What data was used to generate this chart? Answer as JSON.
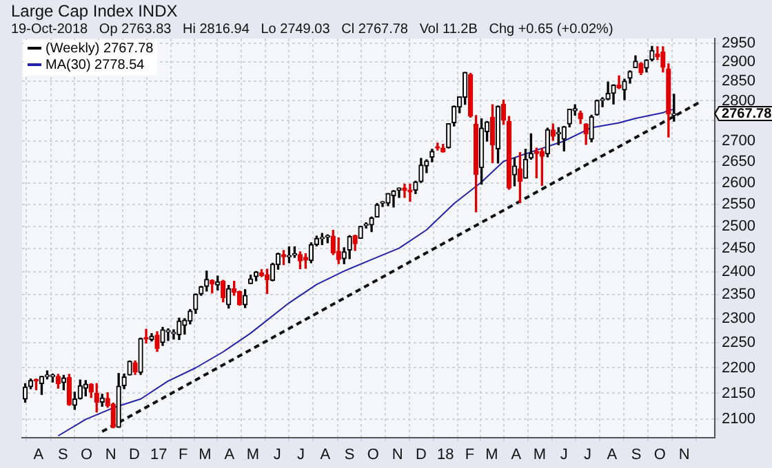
{
  "chart_data": {
    "type": "candlestick",
    "title": "Large Cap Index INDX",
    "subtitle": "19-Oct-2018   Op 2763.83   Hi 2816.94   Lo 2749.03   Cl 2767.78   Vol 11.2B   Chg +0.65 (+0.02%)",
    "xlim": [
      "2016-07-11",
      "2018-12-10"
    ],
    "xticks": [
      {
        "value": "2016-08-01",
        "label": "A"
      },
      {
        "value": "2016-09-01",
        "label": "S"
      },
      {
        "value": "2016-10-01",
        "label": "O"
      },
      {
        "value": "2016-11-01",
        "label": "N"
      },
      {
        "value": "2016-12-01",
        "label": "D"
      },
      {
        "value": "2017-01-01",
        "label": "17"
      },
      {
        "value": "2017-02-01",
        "label": "F"
      },
      {
        "value": "2017-03-01",
        "label": "M"
      },
      {
        "value": "2017-04-01",
        "label": "A"
      },
      {
        "value": "2017-05-01",
        "label": "M"
      },
      {
        "value": "2017-06-01",
        "label": "J"
      },
      {
        "value": "2017-07-01",
        "label": "J"
      },
      {
        "value": "2017-08-01",
        "label": "A"
      },
      {
        "value": "2017-09-01",
        "label": "S"
      },
      {
        "value": "2017-10-01",
        "label": "O"
      },
      {
        "value": "2017-11-01",
        "label": "N"
      },
      {
        "value": "2017-12-01",
        "label": "D"
      },
      {
        "value": "2018-01-01",
        "label": "18"
      },
      {
        "value": "2018-02-01",
        "label": "F"
      },
      {
        "value": "2018-03-01",
        "label": "M"
      },
      {
        "value": "2018-04-01",
        "label": "A"
      },
      {
        "value": "2018-05-01",
        "label": "M"
      },
      {
        "value": "2018-06-01",
        "label": "J"
      },
      {
        "value": "2018-07-01",
        "label": "J"
      },
      {
        "value": "2018-08-01",
        "label": "A"
      },
      {
        "value": "2018-09-01",
        "label": "S"
      },
      {
        "value": "2018-10-01",
        "label": "O"
      },
      {
        "value": "2018-11-01",
        "label": "N"
      }
    ],
    "ylim": [
      2066,
      2962
    ],
    "yticks": [
      2100,
      2150,
      2200,
      2250,
      2300,
      2350,
      2400,
      2450,
      2500,
      2550,
      2600,
      2650,
      2700,
      {
        "value": 2750,
        "label": null
      },
      2800,
      2850,
      2900,
      2950
    ],
    "log": true,
    "grid": true,
    "legend": "top left",
    "annotations": [
      "2767.78"
    ],
    "series": [
      {
        "name": "(Weekly) 2767.78",
        "color": "#000000",
        "x": [
          "2016-07-15",
          "2016-07-22",
          "2016-07-29",
          "2016-08-05",
          "2016-08-12",
          "2016-08-19",
          "2016-08-26",
          "2016-09-02",
          "2016-09-09",
          "2016-09-16",
          "2016-09-23",
          "2016-09-30",
          "2016-10-07",
          "2016-10-14",
          "2016-10-21",
          "2016-10-28",
          "2016-11-04",
          "2016-11-11",
          "2016-11-18",
          "2016-11-25",
          "2016-12-02",
          "2016-12-09",
          "2016-12-16",
          "2016-12-23",
          "2016-12-30",
          "2017-01-06",
          "2017-01-13",
          "2017-01-20",
          "2017-01-27",
          "2017-02-03",
          "2017-02-10",
          "2017-02-17",
          "2017-02-24",
          "2017-03-03",
          "2017-03-10",
          "2017-03-17",
          "2017-03-24",
          "2017-03-31",
          "2017-04-07",
          "2017-04-14",
          "2017-04-21",
          "2017-04-28",
          "2017-05-05",
          "2017-05-12",
          "2017-05-19",
          "2017-05-26",
          "2017-06-02",
          "2017-06-09",
          "2017-06-16",
          "2017-06-23",
          "2017-06-30",
          "2017-07-07",
          "2017-07-14",
          "2017-07-21",
          "2017-07-28",
          "2017-08-04",
          "2017-08-11",
          "2017-08-18",
          "2017-08-25",
          "2017-09-01",
          "2017-09-08",
          "2017-09-15",
          "2017-09-22",
          "2017-09-29",
          "2017-10-06",
          "2017-10-13",
          "2017-10-20",
          "2017-10-27",
          "2017-11-03",
          "2017-11-10",
          "2017-11-17",
          "2017-11-24",
          "2017-12-01",
          "2017-12-08",
          "2017-12-15",
          "2017-12-22",
          "2017-12-29",
          "2018-01-05",
          "2018-01-12",
          "2018-01-19",
          "2018-01-26",
          "2018-02-02",
          "2018-02-09",
          "2018-02-16",
          "2018-02-23",
          "2018-03-02",
          "2018-03-09",
          "2018-03-16",
          "2018-03-23",
          "2018-03-30",
          "2018-04-06",
          "2018-04-13",
          "2018-04-20",
          "2018-04-27",
          "2018-05-04",
          "2018-05-11",
          "2018-05-18",
          "2018-05-25",
          "2018-06-01",
          "2018-06-08",
          "2018-06-15",
          "2018-06-22",
          "2018-06-29",
          "2018-07-06",
          "2018-07-13",
          "2018-07-20",
          "2018-07-27",
          "2018-08-03",
          "2018-08-10",
          "2018-08-17",
          "2018-08-24",
          "2018-08-31",
          "2018-09-07",
          "2018-09-14",
          "2018-09-21",
          "2018-09-28",
          "2018-10-05",
          "2018-10-12",
          "2018-10-19"
        ],
        "ohlc": [
          [
            2139,
            2169,
            2133,
            2162
          ],
          [
            2163,
            2178,
            2159,
            2175
          ],
          [
            2175,
            2178,
            2157,
            2174
          ],
          [
            2169,
            2183,
            2148,
            2183
          ],
          [
            2183,
            2194,
            2178,
            2184
          ],
          [
            2183,
            2188,
            2172,
            2184
          ],
          [
            2183,
            2187,
            2160,
            2169
          ],
          [
            2171,
            2185,
            2157,
            2180
          ],
          [
            2181,
            2187,
            2127,
            2128
          ],
          [
            2127,
            2152,
            2119,
            2139
          ],
          [
            2140,
            2176,
            2139,
            2165
          ],
          [
            2160,
            2175,
            2145,
            2168
          ],
          [
            2168,
            2169,
            2142,
            2153
          ],
          [
            2150,
            2169,
            2114,
            2133
          ],
          [
            2133,
            2148,
            2125,
            2141
          ],
          [
            2140,
            2151,
            2123,
            2126
          ],
          [
            2129,
            2131,
            2084,
            2085
          ],
          [
            2085,
            2189,
            2085,
            2164
          ],
          [
            2165,
            2188,
            2159,
            2182
          ],
          [
            2186,
            2214,
            2186,
            2213
          ],
          [
            2210,
            2214,
            2187,
            2192
          ],
          [
            2191,
            2260,
            2187,
            2259
          ],
          [
            2259,
            2278,
            2250,
            2258
          ],
          [
            2257,
            2269,
            2254,
            2264
          ],
          [
            2266,
            2273,
            2233,
            2239
          ],
          [
            2251,
            2282,
            2245,
            2277
          ],
          [
            2273,
            2279,
            2255,
            2275
          ],
          [
            2269,
            2277,
            2258,
            2271
          ],
          [
            2267,
            2301,
            2257,
            2295
          ],
          [
            2286,
            2300,
            2268,
            2297
          ],
          [
            2295,
            2319,
            2289,
            2316
          ],
          [
            2319,
            2352,
            2311,
            2351
          ],
          [
            2352,
            2368,
            2349,
            2367
          ],
          [
            2368,
            2401,
            2358,
            2383
          ],
          [
            2381,
            2382,
            2354,
            2373
          ],
          [
            2371,
            2390,
            2360,
            2378
          ],
          [
            2379,
            2381,
            2335,
            2344
          ],
          [
            2329,
            2370,
            2322,
            2363
          ],
          [
            2363,
            2379,
            2349,
            2355
          ],
          [
            2357,
            2358,
            2328,
            2329
          ],
          [
            2329,
            2361,
            2323,
            2349
          ],
          [
            2374,
            2392,
            2374,
            2384
          ],
          [
            2389,
            2400,
            2380,
            2399
          ],
          [
            2397,
            2404,
            2389,
            2391
          ],
          [
            2393,
            2405,
            2353,
            2382
          ],
          [
            2381,
            2418,
            2380,
            2416
          ],
          [
            2415,
            2440,
            2405,
            2439
          ],
          [
            2437,
            2446,
            2415,
            2432
          ],
          [
            2432,
            2454,
            2419,
            2433
          ],
          [
            2436,
            2454,
            2431,
            2438
          ],
          [
            2437,
            2443,
            2406,
            2423
          ],
          [
            2431,
            2439,
            2407,
            2425
          ],
          [
            2424,
            2463,
            2419,
            2459
          ],
          [
            2459,
            2478,
            2456,
            2473
          ],
          [
            2472,
            2484,
            2459,
            2472
          ],
          [
            2476,
            2481,
            2463,
            2477
          ],
          [
            2478,
            2491,
            2437,
            2441
          ],
          [
            2444,
            2474,
            2417,
            2426
          ],
          [
            2428,
            2452,
            2417,
            2443
          ],
          [
            2447,
            2479,
            2428,
            2477
          ],
          [
            2479,
            2480,
            2446,
            2461
          ],
          [
            2473,
            2500,
            2473,
            2500
          ],
          [
            2502,
            2508,
            2496,
            2502
          ],
          [
            2503,
            2521,
            2488,
            2519
          ],
          [
            2521,
            2552,
            2521,
            2549
          ],
          [
            2553,
            2557,
            2545,
            2553
          ],
          [
            2553,
            2575,
            2547,
            2575
          ],
          [
            2570,
            2582,
            2544,
            2581
          ],
          [
            2583,
            2588,
            2566,
            2588
          ],
          [
            2588,
            2597,
            2566,
            2582
          ],
          [
            2583,
            2597,
            2557,
            2579
          ],
          [
            2583,
            2604,
            2575,
            2602
          ],
          [
            2603,
            2658,
            2601,
            2642
          ],
          [
            2640,
            2655,
            2624,
            2652
          ],
          [
            2661,
            2680,
            2650,
            2675
          ],
          [
            2684,
            2695,
            2678,
            2683
          ],
          [
            2683,
            2692,
            2673,
            2674
          ],
          [
            2684,
            2743,
            2683,
            2743
          ],
          [
            2745,
            2787,
            2737,
            2786
          ],
          [
            2784,
            2810,
            2770,
            2810
          ],
          [
            2809,
            2873,
            2791,
            2873
          ],
          [
            2867,
            2870,
            2759,
            2762
          ],
          [
            2741,
            2763,
            2533,
            2620
          ],
          [
            2636,
            2755,
            2597,
            2732
          ],
          [
            2723,
            2748,
            2700,
            2747
          ],
          [
            2759,
            2790,
            2648,
            2691
          ],
          [
            2681,
            2787,
            2647,
            2786
          ],
          [
            2791,
            2802,
            2741,
            2752
          ],
          [
            2749,
            2761,
            2585,
            2588
          ],
          [
            2619,
            2659,
            2593,
            2640
          ],
          [
            2633,
            2672,
            2554,
            2604
          ],
          [
            2611,
            2680,
            2611,
            2656
          ],
          [
            2659,
            2718,
            2656,
            2670
          ],
          [
            2675,
            2683,
            2612,
            2670
          ],
          [
            2675,
            2682,
            2594,
            2663
          ],
          [
            2669,
            2732,
            2662,
            2728
          ],
          [
            2727,
            2742,
            2702,
            2712
          ],
          [
            2718,
            2733,
            2691,
            2721
          ],
          [
            2705,
            2736,
            2676,
            2735
          ],
          [
            2742,
            2779,
            2735,
            2779
          ],
          [
            2775,
            2790,
            2764,
            2780
          ],
          [
            2769,
            2774,
            2743,
            2755
          ],
          [
            2742,
            2743,
            2692,
            2718
          ],
          [
            2705,
            2764,
            2698,
            2760
          ],
          [
            2765,
            2802,
            2764,
            2801
          ],
          [
            2801,
            2808,
            2785,
            2802
          ],
          [
            2804,
            2848,
            2803,
            2819
          ],
          [
            2819,
            2841,
            2792,
            2840
          ],
          [
            2840,
            2864,
            2831,
            2833
          ],
          [
            2828,
            2855,
            2803,
            2850
          ],
          [
            2858,
            2877,
            2845,
            2875
          ],
          [
            2885,
            2916,
            2885,
            2902
          ],
          [
            2896,
            2898,
            2867,
            2872
          ],
          [
            2884,
            2906,
            2874,
            2905
          ],
          [
            2906,
            2941,
            2903,
            2930
          ],
          [
            2921,
            2940,
            2906,
            2914
          ],
          [
            2926,
            2940,
            2874,
            2886
          ],
          [
            2882,
            2895,
            2710,
            2767
          ],
          [
            2763.83,
            2816.94,
            2749.03,
            2767.78
          ]
        ],
        "colors": [
          "#000000",
          "#000000",
          "#e00000",
          "#000000",
          "#000000",
          "#000000",
          "#e00000",
          "#000000",
          "#e00000",
          "#000000",
          "#000000",
          "#000000",
          "#e00000",
          "#e00000",
          "#000000",
          "#e00000",
          "#e00000",
          "#000000",
          "#000000",
          "#000000",
          "#e00000",
          "#000000",
          "#e00000",
          "#000000",
          "#e00000",
          "#000000",
          "#000000",
          "#000000",
          "#000000",
          "#000000",
          "#000000",
          "#000000",
          "#000000",
          "#000000",
          "#e00000",
          "#000000",
          "#e00000",
          "#000000",
          "#e00000",
          "#e00000",
          "#000000",
          "#000000",
          "#000000",
          "#e00000",
          "#e00000",
          "#000000",
          "#000000",
          "#e00000",
          "#000000",
          "#000000",
          "#e00000",
          "#e00000",
          "#000000",
          "#000000",
          "#000000",
          "#000000",
          "#e00000",
          "#e00000",
          "#000000",
          "#000000",
          "#e00000",
          "#000000",
          "#000000",
          "#000000",
          "#000000",
          "#000000",
          "#000000",
          "#000000",
          "#000000",
          "#e00000",
          "#e00000",
          "#000000",
          "#000000",
          "#000000",
          "#000000",
          "#e00000",
          "#e00000",
          "#000000",
          "#000000",
          "#000000",
          "#000000",
          "#e00000",
          "#e00000",
          "#000000",
          "#000000",
          "#e00000",
          "#000000",
          "#e00000",
          "#e00000",
          "#000000",
          "#e00000",
          "#000000",
          "#000000",
          "#e00000",
          "#e00000",
          "#000000",
          "#e00000",
          "#000000",
          "#000000",
          "#000000",
          "#000000",
          "#e00000",
          "#e00000",
          "#000000",
          "#000000",
          "#000000",
          "#000000",
          "#000000",
          "#e00000",
          "#000000",
          "#000000",
          "#000000",
          "#e00000",
          "#000000",
          "#000000",
          "#e00000",
          "#e00000",
          "#e00000",
          "#000000"
        ]
      },
      {
        "type": "line",
        "name": "MA(30) 2778.54",
        "color": "#2222aa",
        "marker": "none",
        "line_style": "solid",
        "x": [
          "2016-08-26",
          "2016-09-30",
          "2016-11-04",
          "2016-12-09",
          "2017-01-13",
          "2017-02-17",
          "2017-03-24",
          "2017-04-28",
          "2017-06-16",
          "2017-07-21",
          "2017-08-25",
          "2017-09-29",
          "2017-11-03",
          "2017-12-08",
          "2018-01-12",
          "2018-02-16",
          "2018-03-16",
          "2018-04-27",
          "2018-06-01",
          "2018-07-06",
          "2018-08-10",
          "2018-08-31",
          "2018-10-05",
          "2018-10-12",
          "2018-10-19"
        ],
        "values": [
          2069,
          2100,
          2122,
          2139,
          2174,
          2200,
          2232,
          2270,
          2333,
          2372,
          2401,
          2426,
          2451,
          2492,
          2552,
          2602,
          2651,
          2678,
          2700,
          2733,
          2745,
          2756,
          2770,
          2776,
          2778.54
        ]
      },
      {
        "type": "line",
        "color": "#111111",
        "marker": "none",
        "line_style": "dashed",
        "x": [
          "2016-10-21",
          "2018-11-23"
        ],
        "values": [
          2077,
          2799
        ]
      }
    ]
  }
}
